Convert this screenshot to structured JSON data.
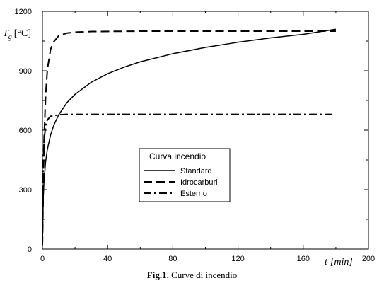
{
  "chart_data": {
    "type": "line",
    "title": "",
    "ylabel_symbol": "T",
    "ylabel_subscript": "g",
    "ylabel_unit": "[°C]",
    "xlabel_symbol": "t",
    "xlabel_unit": "[min]",
    "xlim": [
      0,
      200
    ],
    "ylim": [
      0,
      1200
    ],
    "xticks": [
      0,
      40,
      80,
      120,
      160,
      200
    ],
    "yticks": [
      0,
      300,
      600,
      900,
      1200
    ],
    "grid": false,
    "legend": {
      "title": "Curva incendio",
      "placement": "center",
      "entries": [
        "Standard",
        "Idrocarburi",
        "Esterno"
      ]
    },
    "series": [
      {
        "name": "Standard",
        "style": "solid",
        "x": [
          0,
          0.5,
          1,
          2,
          3,
          5,
          7,
          10,
          15,
          20,
          30,
          40,
          50,
          60,
          80,
          100,
          120,
          140,
          160,
          180
        ],
        "y": [
          20,
          261,
          349,
          445,
          502,
          576,
          626,
          678,
          739,
          781,
          842,
          885,
          918,
          945,
          986,
          1018,
          1044,
          1066,
          1084,
          1110
        ]
      },
      {
        "name": "Idrocarburi",
        "style": "dashed",
        "x": [
          0,
          1,
          2,
          3,
          5,
          7,
          10,
          15,
          20,
          30,
          60,
          100,
          140,
          180
        ],
        "y": [
          20,
          556,
          780,
          905,
          1009,
          1047,
          1077,
          1090,
          1095,
          1098,
          1100,
          1100,
          1100,
          1100
        ]
      },
      {
        "name": "Esterno",
        "style": "dashdot",
        "x": [
          0,
          0.5,
          1,
          2,
          3,
          5,
          10,
          15,
          20,
          40,
          60,
          100,
          140,
          178
        ],
        "y": [
          20,
          430,
          548,
          627,
          652,
          670,
          678,
          680,
          680,
          680,
          680,
          680,
          680,
          680
        ]
      }
    ]
  },
  "caption": {
    "label": "Fig.1.",
    "text": "Curve di incendio"
  }
}
